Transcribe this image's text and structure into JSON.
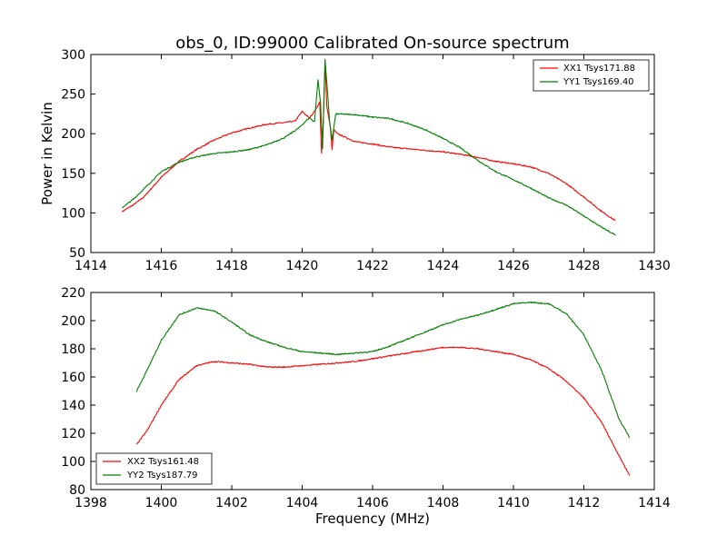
{
  "chart_data": [
    {
      "type": "line",
      "title": "obs_0, ID:99000 Calibrated On-source spectrum",
      "xlabel": "",
      "ylabel": "Power in Kelvin",
      "xlim": [
        1414,
        1430
      ],
      "ylim": [
        50,
        300
      ],
      "xticks": [
        1414,
        1416,
        1418,
        1420,
        1422,
        1424,
        1426,
        1428,
        1430
      ],
      "yticks": [
        50,
        100,
        150,
        200,
        250,
        300
      ],
      "grid": false,
      "legend_position": "top-right",
      "series": [
        {
          "name": "XX1 Tsys171.88",
          "color": "#ff0000",
          "points": [
            [
              1414.9,
              102
            ],
            [
              1415.2,
              110
            ],
            [
              1415.5,
              120
            ],
            [
              1416.0,
              145
            ],
            [
              1416.5,
              165
            ],
            [
              1417.0,
              180
            ],
            [
              1417.5,
              192
            ],
            [
              1418.0,
              201
            ],
            [
              1418.5,
              207
            ],
            [
              1419.0,
              212
            ],
            [
              1419.5,
              214
            ],
            [
              1419.8,
              216
            ],
            [
              1420.0,
              228
            ],
            [
              1420.2,
              220
            ],
            [
              1420.3,
              225
            ],
            [
              1420.4,
              232
            ],
            [
              1420.5,
              240
            ],
            [
              1420.55,
              175
            ],
            [
              1420.6,
              215
            ],
            [
              1420.65,
              290
            ],
            [
              1420.7,
              235
            ],
            [
              1420.8,
              208
            ],
            [
              1420.85,
              180
            ],
            [
              1420.9,
              205
            ],
            [
              1421.0,
              200
            ],
            [
              1421.5,
              190
            ],
            [
              1422.0,
              187
            ],
            [
              1422.5,
              183
            ],
            [
              1423.0,
              181
            ],
            [
              1423.5,
              179
            ],
            [
              1424.0,
              177
            ],
            [
              1424.5,
              174
            ],
            [
              1425.0,
              170
            ],
            [
              1425.5,
              165
            ],
            [
              1426.0,
              162
            ],
            [
              1426.5,
              158
            ],
            [
              1427.0,
              150
            ],
            [
              1427.5,
              137
            ],
            [
              1428.0,
              120
            ],
            [
              1428.5,
              102
            ],
            [
              1428.9,
              90
            ]
          ]
        },
        {
          "name": "YY1 Tsys169.40",
          "color": "#008000",
          "points": [
            [
              1414.9,
              107
            ],
            [
              1415.2,
              117
            ],
            [
              1415.5,
              130
            ],
            [
              1416.0,
              152
            ],
            [
              1416.5,
              164
            ],
            [
              1417.0,
              171
            ],
            [
              1417.5,
              175
            ],
            [
              1418.0,
              177
            ],
            [
              1418.5,
              180
            ],
            [
              1419.0,
              186
            ],
            [
              1419.5,
              195
            ],
            [
              1419.9,
              207
            ],
            [
              1420.2,
              220
            ],
            [
              1420.35,
              215
            ],
            [
              1420.45,
              268
            ],
            [
              1420.52,
              240
            ],
            [
              1420.58,
              182
            ],
            [
              1420.65,
              294
            ],
            [
              1420.7,
              265
            ],
            [
              1420.78,
              215
            ],
            [
              1420.85,
              192
            ],
            [
              1420.95,
              224
            ],
            [
              1421.0,
              225
            ],
            [
              1421.5,
              224
            ],
            [
              1422.0,
              221
            ],
            [
              1422.5,
              219
            ],
            [
              1423.0,
              213
            ],
            [
              1423.5,
              205
            ],
            [
              1424.0,
              194
            ],
            [
              1424.5,
              182
            ],
            [
              1425.0,
              166
            ],
            [
              1425.5,
              152
            ],
            [
              1426.0,
              142
            ],
            [
              1426.5,
              131
            ],
            [
              1427.0,
              119
            ],
            [
              1427.5,
              110
            ],
            [
              1428.0,
              96
            ],
            [
              1428.5,
              82
            ],
            [
              1428.9,
              72
            ]
          ]
        }
      ]
    },
    {
      "type": "line",
      "title": "",
      "xlabel": "Frequency (MHz)",
      "ylabel": "",
      "xlim": [
        1398,
        1414
      ],
      "ylim": [
        80,
        220
      ],
      "xticks": [
        1398,
        1400,
        1402,
        1404,
        1406,
        1408,
        1410,
        1412,
        1414
      ],
      "yticks": [
        80,
        100,
        120,
        140,
        160,
        180,
        200,
        220
      ],
      "grid": false,
      "legend_position": "bottom-left",
      "series": [
        {
          "name": "XX2 Tsys161.48",
          "color": "#ff0000",
          "points": [
            [
              1399.3,
              112
            ],
            [
              1399.6,
              122
            ],
            [
              1400.0,
              140
            ],
            [
              1400.5,
              158
            ],
            [
              1401.0,
              168
            ],
            [
              1401.5,
              171
            ],
            [
              1402.0,
              170
            ],
            [
              1402.5,
              169
            ],
            [
              1403.0,
              167
            ],
            [
              1403.5,
              167
            ],
            [
              1404.0,
              168
            ],
            [
              1404.5,
              169
            ],
            [
              1405.0,
              170
            ],
            [
              1405.5,
              171
            ],
            [
              1406.0,
              173
            ],
            [
              1406.5,
              175
            ],
            [
              1407.0,
              177
            ],
            [
              1407.5,
              179
            ],
            [
              1408.0,
              181
            ],
            [
              1408.5,
              181
            ],
            [
              1409.0,
              180
            ],
            [
              1409.5,
              178
            ],
            [
              1410.0,
              176
            ],
            [
              1410.5,
              172
            ],
            [
              1411.0,
              166
            ],
            [
              1411.5,
              157
            ],
            [
              1412.0,
              145
            ],
            [
              1412.5,
              128
            ],
            [
              1413.0,
              104
            ],
            [
              1413.3,
              90
            ]
          ]
        },
        {
          "name": "YY2 Tsys187.79",
          "color": "#008000",
          "points": [
            [
              1399.3,
              150
            ],
            [
              1399.6,
              165
            ],
            [
              1400.0,
              186
            ],
            [
              1400.5,
              204
            ],
            [
              1401.0,
              209
            ],
            [
              1401.5,
              207
            ],
            [
              1402.0,
              199
            ],
            [
              1402.5,
              190
            ],
            [
              1403.0,
              185
            ],
            [
              1403.5,
              181
            ],
            [
              1404.0,
              178
            ],
            [
              1404.5,
              177
            ],
            [
              1405.0,
              176
            ],
            [
              1405.5,
              177
            ],
            [
              1406.0,
              178
            ],
            [
              1406.5,
              182
            ],
            [
              1407.0,
              187
            ],
            [
              1407.5,
              192
            ],
            [
              1408.0,
              197
            ],
            [
              1408.5,
              201
            ],
            [
              1409.0,
              204
            ],
            [
              1409.5,
              208
            ],
            [
              1410.0,
              212
            ],
            [
              1410.5,
              213
            ],
            [
              1411.0,
              212
            ],
            [
              1411.5,
              205
            ],
            [
              1412.0,
              190
            ],
            [
              1412.5,
              165
            ],
            [
              1413.0,
              130
            ],
            [
              1413.3,
              117
            ]
          ]
        }
      ]
    }
  ]
}
